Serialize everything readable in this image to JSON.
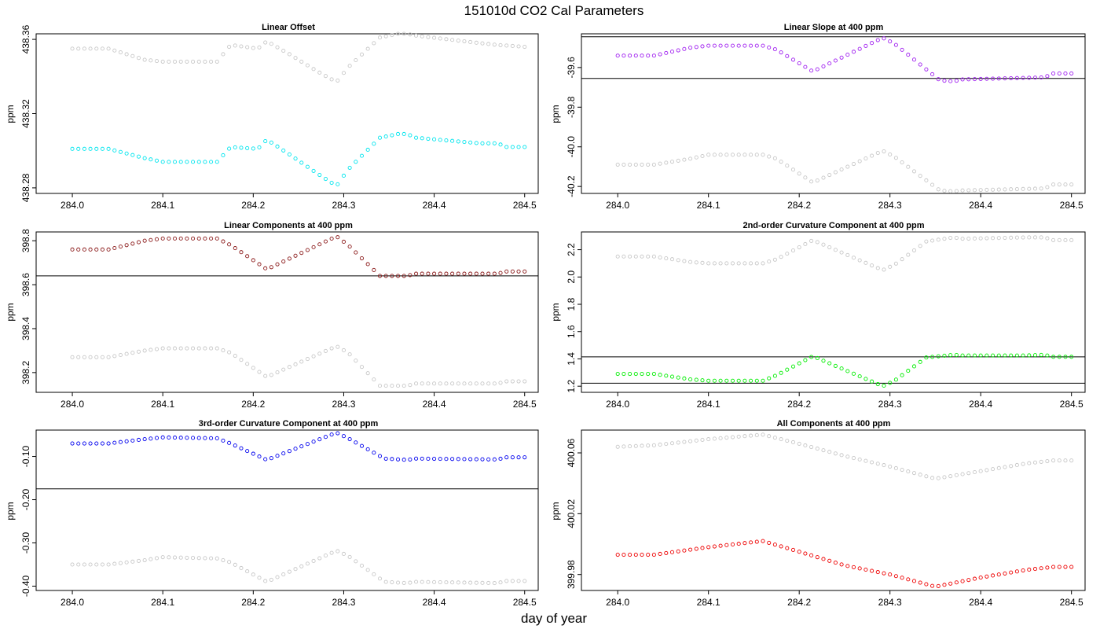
{
  "figure": {
    "title": "151010d   CO2 Cal Parameters",
    "xlabel": "day of year"
  },
  "chart_data": [
    {
      "type": "scatter",
      "title": "Linear Offset",
      "ylabel": "ppm",
      "xlim": [
        283.96,
        284.515
      ],
      "ylim": [
        438.277,
        438.363
      ],
      "xticks": [
        "284.0",
        "284.1",
        "284.2",
        "284.3",
        "284.4",
        "284.5"
      ],
      "yticks": [
        "438.28",
        "438.32",
        "438.36"
      ],
      "hlines": [],
      "n_points": 76,
      "x_start": 284.0,
      "x_end": 284.5,
      "series": [
        {
          "name": "gray",
          "color": "#c8c8c8",
          "points": [
            [
              284.0,
              438.355
            ],
            [
              284.04,
              438.355
            ],
            [
              284.08,
              438.349
            ],
            [
              284.1,
              438.348
            ],
            [
              284.16,
              438.348
            ],
            [
              284.175,
              438.357
            ],
            [
              284.205,
              438.355
            ],
            [
              284.215,
              438.359
            ],
            [
              284.24,
              438.352
            ],
            [
              284.27,
              438.343
            ],
            [
              284.292,
              438.337
            ],
            [
              284.305,
              438.345
            ],
            [
              284.34,
              438.361
            ],
            [
              284.36,
              438.363
            ],
            [
              284.37,
              438.363
            ],
            [
              284.38,
              438.362
            ],
            [
              284.45,
              438.358
            ],
            [
              284.47,
              438.357
            ],
            [
              284.5,
              438.356
            ]
          ]
        },
        {
          "name": "cyan",
          "color": "#00e5ee",
          "points": [
            [
              284.0,
              438.301
            ],
            [
              284.04,
              438.301
            ],
            [
              284.08,
              438.296
            ],
            [
              284.1,
              438.294
            ],
            [
              284.16,
              438.294
            ],
            [
              284.175,
              438.302
            ],
            [
              284.205,
              438.301
            ],
            [
              284.215,
              438.306
            ],
            [
              284.24,
              438.298
            ],
            [
              284.27,
              438.288
            ],
            [
              284.292,
              438.281
            ],
            [
              284.305,
              438.29
            ],
            [
              284.34,
              438.307
            ],
            [
              284.36,
              438.309
            ],
            [
              284.37,
              438.309
            ],
            [
              284.38,
              438.307
            ],
            [
              284.45,
              438.304
            ],
            [
              284.47,
              438.304
            ],
            [
              284.48,
              438.302
            ],
            [
              284.5,
              438.302
            ]
          ]
        }
      ]
    },
    {
      "type": "scatter",
      "title": "Linear Slope at 400 ppm",
      "ylabel": "ppm",
      "xlim": [
        283.96,
        284.515
      ],
      "ylim": [
        -40.235,
        -39.43
      ],
      "xticks": [
        "284.0",
        "284.1",
        "284.2",
        "284.3",
        "284.4",
        "284.5"
      ],
      "yticks": [
        "-39.6",
        "-39.8",
        "-40.0",
        "-40.2"
      ],
      "hlines": [
        -39.445,
        -39.655
      ],
      "n_points": 76,
      "x_start": 284.0,
      "x_end": 284.5,
      "series": [
        {
          "name": "gray",
          "color": "#c8c8c8",
          "points": [
            [
              284.0,
              -40.09
            ],
            [
              284.04,
              -40.09
            ],
            [
              284.08,
              -40.06
            ],
            [
              284.1,
              -40.04
            ],
            [
              284.16,
              -40.04
            ],
            [
              284.175,
              -40.06
            ],
            [
              284.215,
              -40.18
            ],
            [
              284.292,
              -40.02
            ],
            [
              284.305,
              -40.05
            ],
            [
              284.355,
              -40.22
            ],
            [
              284.37,
              -40.225
            ],
            [
              284.38,
              -40.22
            ],
            [
              284.47,
              -40.21
            ],
            [
              284.48,
              -40.19
            ],
            [
              284.5,
              -40.19
            ]
          ]
        },
        {
          "name": "purple",
          "color": "#a020f0",
          "points": [
            [
              284.0,
              -39.54
            ],
            [
              284.04,
              -39.54
            ],
            [
              284.08,
              -39.5
            ],
            [
              284.1,
              -39.49
            ],
            [
              284.16,
              -39.49
            ],
            [
              284.175,
              -39.51
            ],
            [
              284.215,
              -39.62
            ],
            [
              284.292,
              -39.45
            ],
            [
              284.305,
              -39.48
            ],
            [
              284.355,
              -39.665
            ],
            [
              284.37,
              -39.67
            ],
            [
              284.38,
              -39.66
            ],
            [
              284.47,
              -39.65
            ],
            [
              284.48,
              -39.63
            ],
            [
              284.5,
              -39.63
            ]
          ]
        }
      ]
    },
    {
      "type": "scatter",
      "title": "Linear Components at 400 ppm",
      "ylabel": "ppm",
      "xlim": [
        283.96,
        284.515
      ],
      "ylim": [
        398.11,
        398.84
      ],
      "xticks": [
        "284.0",
        "284.1",
        "284.2",
        "284.3",
        "284.4",
        "284.5"
      ],
      "yticks": [
        "398.2",
        "398.4",
        "398.6",
        "398.8"
      ],
      "hlines": [
        398.64
      ],
      "n_points": 76,
      "x_start": 284.0,
      "x_end": 284.5,
      "series": [
        {
          "name": "gray",
          "color": "#c8c8c8",
          "points": [
            [
              284.0,
              398.27
            ],
            [
              284.04,
              398.27
            ],
            [
              284.08,
              398.3
            ],
            [
              284.1,
              398.31
            ],
            [
              284.16,
              398.31
            ],
            [
              284.175,
              398.29
            ],
            [
              284.215,
              398.18
            ],
            [
              284.292,
              398.32
            ],
            [
              284.305,
              398.29
            ],
            [
              284.34,
              398.14
            ],
            [
              284.37,
              398.14
            ],
            [
              284.38,
              398.15
            ],
            [
              284.47,
              398.15
            ],
            [
              284.48,
              398.16
            ],
            [
              284.5,
              398.16
            ]
          ]
        },
        {
          "name": "darkred",
          "color": "#8b1a1a",
          "points": [
            [
              284.0,
              398.76
            ],
            [
              284.04,
              398.76
            ],
            [
              284.08,
              398.8
            ],
            [
              284.1,
              398.81
            ],
            [
              284.16,
              398.81
            ],
            [
              284.175,
              398.78
            ],
            [
              284.215,
              398.67
            ],
            [
              284.292,
              398.82
            ],
            [
              284.305,
              398.78
            ],
            [
              284.34,
              398.64
            ],
            [
              284.37,
              398.64
            ],
            [
              284.38,
              398.65
            ],
            [
              284.47,
              398.65
            ],
            [
              284.48,
              398.66
            ],
            [
              284.5,
              398.66
            ]
          ]
        }
      ]
    },
    {
      "type": "scatter",
      "title": "2nd-order Curvature Component at 400 ppm",
      "ylabel": "ppm",
      "xlim": [
        283.96,
        284.515
      ],
      "ylim": [
        1.155,
        2.33
      ],
      "xticks": [
        "284.0",
        "284.1",
        "284.2",
        "284.3",
        "284.4",
        "284.5"
      ],
      "yticks": [
        "1.2",
        "1.4",
        "1.6",
        "1.8",
        "2.0",
        "2.2"
      ],
      "hlines": [
        1.415,
        1.222
      ],
      "n_points": 76,
      "x_start": 284.0,
      "x_end": 284.5,
      "series": [
        {
          "name": "gray",
          "color": "#c8c8c8",
          "points": [
            [
              284.0,
              2.15
            ],
            [
              284.04,
              2.15
            ],
            [
              284.08,
              2.11
            ],
            [
              284.1,
              2.1
            ],
            [
              284.16,
              2.1
            ],
            [
              284.175,
              2.13
            ],
            [
              284.215,
              2.27
            ],
            [
              284.292,
              2.05
            ],
            [
              284.305,
              2.09
            ],
            [
              284.34,
              2.26
            ],
            [
              284.37,
              2.29
            ],
            [
              284.38,
              2.28
            ],
            [
              284.45,
              2.29
            ],
            [
              284.47,
              2.29
            ],
            [
              284.48,
              2.27
            ],
            [
              284.5,
              2.27
            ]
          ]
        },
        {
          "name": "green",
          "color": "#00ee00",
          "points": [
            [
              284.0,
              1.29
            ],
            [
              284.04,
              1.29
            ],
            [
              284.08,
              1.25
            ],
            [
              284.1,
              1.24
            ],
            [
              284.16,
              1.24
            ],
            [
              284.175,
              1.28
            ],
            [
              284.215,
              1.42
            ],
            [
              284.292,
              1.2
            ],
            [
              284.305,
              1.24
            ],
            [
              284.34,
              1.41
            ],
            [
              284.37,
              1.43
            ],
            [
              284.38,
              1.425
            ],
            [
              284.45,
              1.425
            ],
            [
              284.47,
              1.43
            ],
            [
              284.48,
              1.415
            ],
            [
              284.5,
              1.415
            ]
          ]
        }
      ]
    },
    {
      "type": "scatter",
      "title": "3rd-order Curvature Component at 400 ppm",
      "ylabel": "ppm",
      "xlim": [
        283.96,
        284.515
      ],
      "ylim": [
        -0.41,
        -0.039
      ],
      "xticks": [
        "284.0",
        "284.1",
        "284.2",
        "284.3",
        "284.4",
        "284.5"
      ],
      "yticks": [
        "-0.10",
        "-0.20",
        "-0.30",
        "-0.40"
      ],
      "hlines": [
        -0.175
      ],
      "n_points": 76,
      "x_start": 284.0,
      "x_end": 284.5,
      "series": [
        {
          "name": "gray",
          "color": "#c8c8c8",
          "points": [
            [
              284.0,
              -0.35
            ],
            [
              284.04,
              -0.35
            ],
            [
              284.08,
              -0.34
            ],
            [
              284.1,
              -0.333
            ],
            [
              284.16,
              -0.336
            ],
            [
              284.175,
              -0.345
            ],
            [
              284.215,
              -0.39
            ],
            [
              284.292,
              -0.318
            ],
            [
              284.305,
              -0.33
            ],
            [
              284.345,
              -0.39
            ],
            [
              284.37,
              -0.393
            ],
            [
              284.38,
              -0.39
            ],
            [
              284.47,
              -0.393
            ],
            [
              284.48,
              -0.388
            ],
            [
              284.5,
              -0.388
            ]
          ]
        },
        {
          "name": "blue",
          "color": "#0000ee",
          "points": [
            [
              284.0,
              -0.07
            ],
            [
              284.04,
              -0.07
            ],
            [
              284.08,
              -0.06
            ],
            [
              284.1,
              -0.056
            ],
            [
              284.16,
              -0.058
            ],
            [
              284.175,
              -0.07
            ],
            [
              284.215,
              -0.108
            ],
            [
              284.292,
              -0.045
            ],
            [
              284.305,
              -0.058
            ],
            [
              284.345,
              -0.105
            ],
            [
              284.37,
              -0.108
            ],
            [
              284.38,
              -0.105
            ],
            [
              284.47,
              -0.107
            ],
            [
              284.48,
              -0.102
            ],
            [
              284.5,
              -0.102
            ]
          ]
        }
      ]
    },
    {
      "type": "scatter",
      "title": "All Components at 400 ppm",
      "ylabel": "ppm",
      "xlim": [
        283.96,
        284.515
      ],
      "ylim": [
        399.9695,
        400.075
      ],
      "xticks": [
        "284.0",
        "284.1",
        "284.2",
        "284.3",
        "284.4",
        "284.5"
      ],
      "yticks": [
        "399.98",
        "400.02",
        "400.06"
      ],
      "hlines": [],
      "n_points": 76,
      "x_start": 284.0,
      "x_end": 284.5,
      "series": [
        {
          "name": "gray",
          "color": "#c8c8c8",
          "points": [
            [
              284.0,
              400.064
            ],
            [
              284.04,
              400.065
            ],
            [
              284.1,
              400.069
            ],
            [
              284.16,
              400.072
            ],
            [
              284.2,
              400.066
            ],
            [
              284.25,
              400.058
            ],
            [
              284.3,
              400.051
            ],
            [
              284.35,
              400.043
            ],
            [
              284.4,
              400.048
            ],
            [
              284.45,
              400.053
            ],
            [
              284.48,
              400.055
            ],
            [
              284.5,
              400.055
            ]
          ]
        },
        {
          "name": "red",
          "color": "#ee0000",
          "points": [
            [
              284.0,
              399.993
            ],
            [
              284.04,
              399.993
            ],
            [
              284.1,
              399.998
            ],
            [
              284.16,
              400.002
            ],
            [
              284.2,
              399.995
            ],
            [
              284.25,
              399.986
            ],
            [
              284.3,
              399.98
            ],
            [
              284.35,
              399.972
            ],
            [
              284.4,
              399.978
            ],
            [
              284.45,
              399.983
            ],
            [
              284.48,
              399.985
            ],
            [
              284.5,
              399.985
            ]
          ]
        }
      ]
    }
  ]
}
